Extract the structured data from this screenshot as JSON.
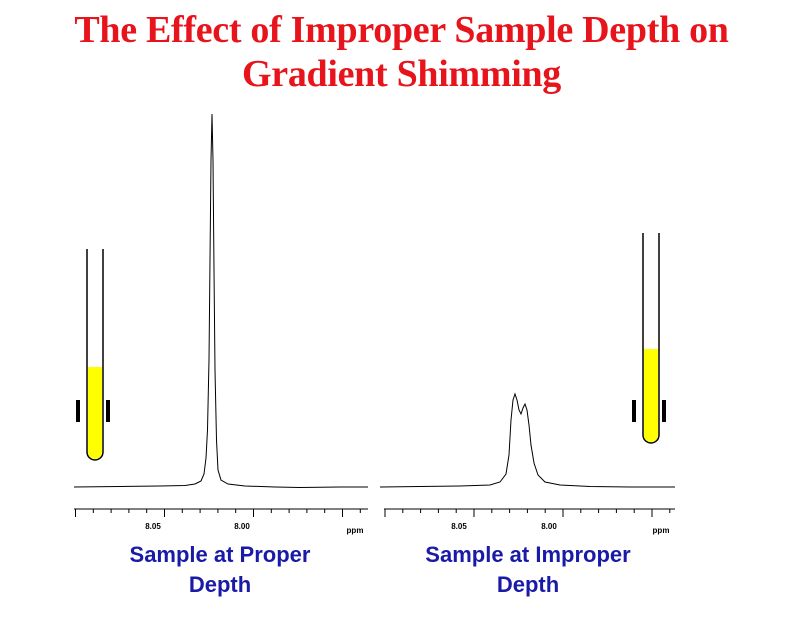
{
  "title": {
    "line1": "The Effect of Improper Sample Depth on",
    "line2": "Gradient Shimming"
  },
  "colors": {
    "title": "#e8141c",
    "caption": "#1a1aa8",
    "sample_fill": "#ffff00",
    "trace": "#000000"
  },
  "panels": [
    {
      "caption_line1": "Sample at Proper",
      "caption_line2": "Depth",
      "ticks": [
        {
          "ppm": 8.05,
          "label": "8.05"
        },
        {
          "ppm": 8.0,
          "label": "8.00"
        }
      ],
      "unit": "ppm"
    },
    {
      "caption_line1": "Sample at Improper",
      "caption_line2": "Depth",
      "ticks": [
        {
          "ppm": 8.05,
          "label": "8.05"
        },
        {
          "ppm": 8.0,
          "label": "8.00"
        }
      ],
      "unit": "ppm"
    }
  ]
}
